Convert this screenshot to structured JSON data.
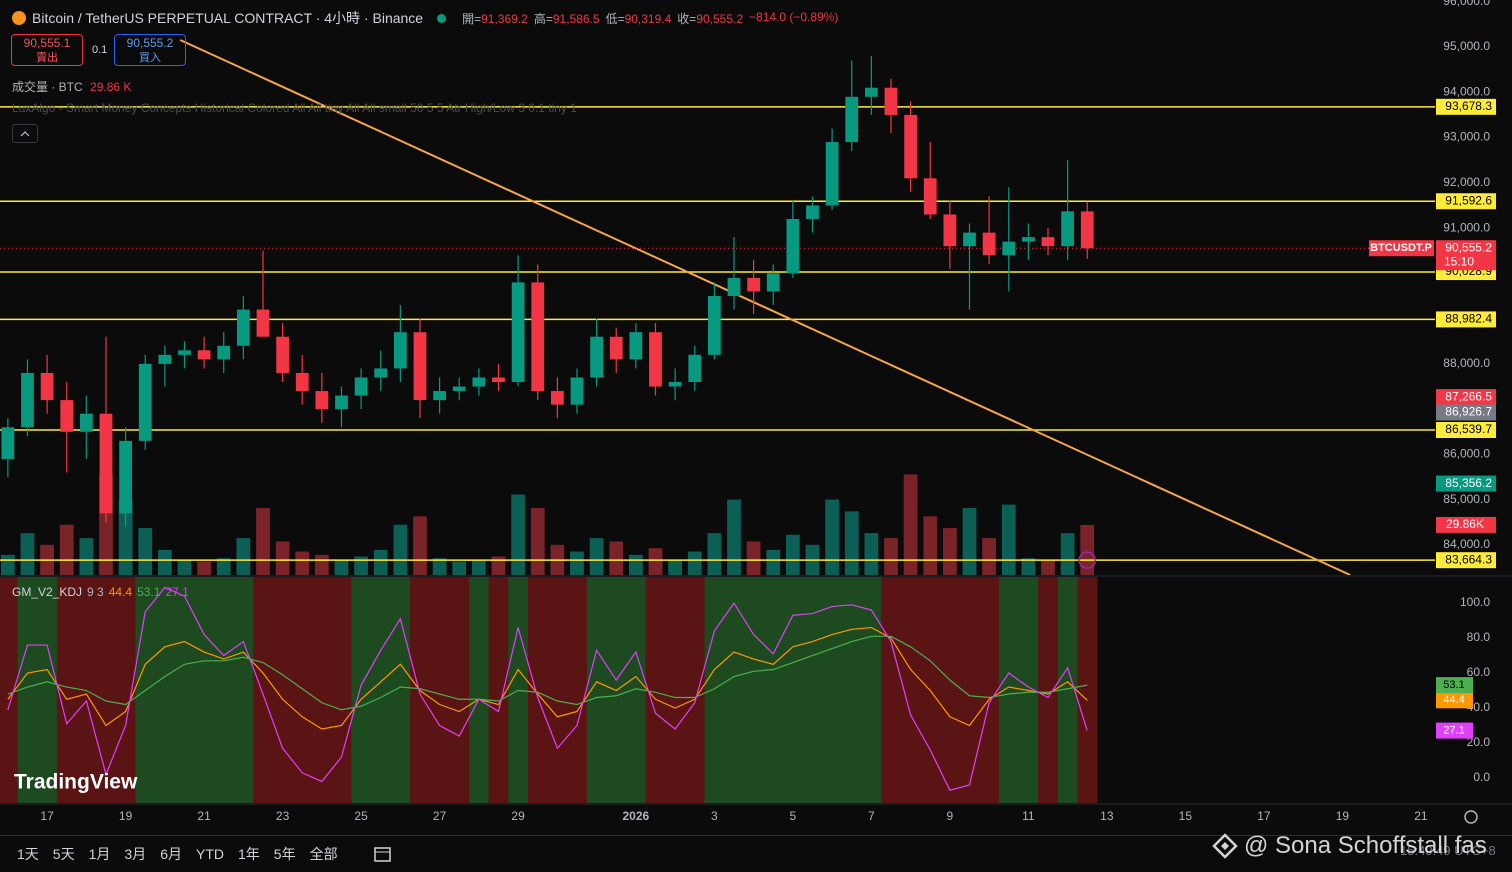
{
  "header": {
    "symbol_title": "Bitcoin / TetherUS PERPETUAL CONTRACT · 4小時 · Binance",
    "ohlc": [
      {
        "label": "開=",
        "value": "91,369.2"
      },
      {
        "label": "高=",
        "value": "91,586.5"
      },
      {
        "label": "低=",
        "value": "90,319.4"
      },
      {
        "label": "收=",
        "value": "90,555.2"
      }
    ],
    "change": "−814.0 (−0.89%)",
    "sell": {
      "price": "90,555.1",
      "label": "賣出"
    },
    "qty": "0.1",
    "buy": {
      "price": "90,555.2",
      "label": "買入"
    },
    "volume_legend": {
      "title": "成交量 · BTC",
      "value": "29.86 K"
    },
    "indicator": "LuxAlgo - Smart Money Concepts Historical Colored All All tiny All All small 50 5 5 Atr High/Low 3 0.1 tiny 1"
  },
  "chart_data": {
    "type": "candlestick",
    "xlim": [
      15.8,
      52.36
    ],
    "ylim": [
      83337,
      96038
    ],
    "xticks": [
      {
        "value": 17,
        "label": "17"
      },
      {
        "value": 19,
        "label": "19"
      },
      {
        "value": 21,
        "label": "21"
      },
      {
        "value": 23,
        "label": "23"
      },
      {
        "value": 25,
        "label": "25"
      },
      {
        "value": 27,
        "label": "27"
      },
      {
        "value": 29,
        "label": "29"
      },
      {
        "value": 32,
        "label": "2026"
      },
      {
        "value": 34,
        "label": "3"
      },
      {
        "value": 36,
        "label": "5"
      },
      {
        "value": 38,
        "label": "7"
      },
      {
        "value": 40,
        "label": "9"
      },
      {
        "value": 42,
        "label": "11"
      },
      {
        "value": 44,
        "label": "13"
      },
      {
        "value": 46,
        "label": "15"
      },
      {
        "value": 48,
        "label": "17"
      },
      {
        "value": 50,
        "label": "19"
      },
      {
        "value": 52,
        "label": "21"
      }
    ],
    "yticks": [
      {
        "value": 84000,
        "label": "84,000.0"
      },
      {
        "value": 85000,
        "label": "85,000.0"
      },
      {
        "value": 86000,
        "label": "86,000.0"
      },
      {
        "value": 87000,
        "label": "87,000.0"
      },
      {
        "value": 88000,
        "label": "88,000.0"
      },
      {
        "value": 89000,
        "label": "89,000.0"
      },
      {
        "value": 90000,
        "label": "90,000.0"
      },
      {
        "value": 91000,
        "label": "91,000.0"
      },
      {
        "value": 92000,
        "label": "92,000.0"
      },
      {
        "value": 93000,
        "label": "93,000.0"
      },
      {
        "value": 94000,
        "label": "94,000.0"
      },
      {
        "value": 95000,
        "label": "95,000.0"
      },
      {
        "value": 96000,
        "label": "96,000.0"
      }
    ],
    "up_color": "#089981",
    "down_color": "#f23645",
    "volume_up_color": "#0b5f55",
    "volume_down_color": "#7a2329",
    "candles": {
      "x": [
        16,
        16.5,
        17,
        17.5,
        18,
        18.5,
        19,
        19.5,
        20,
        20.5,
        21,
        21.5,
        22,
        22.5,
        23,
        23.5,
        24,
        24.5,
        25,
        25.5,
        26,
        26.5,
        27,
        27.5,
        28,
        28.5,
        29,
        29.5,
        30,
        30.5,
        31,
        31.5,
        32,
        32.5,
        33,
        33.5,
        34,
        34.5,
        35,
        35.5,
        36,
        36.5,
        37,
        37.5,
        38,
        38.5,
        39,
        39.5,
        40,
        40.5,
        41,
        41.5,
        42,
        42.5,
        43,
        43.5
      ],
      "open": [
        85900,
        86600,
        87800,
        87200,
        86500,
        86900,
        84700,
        86300,
        88000,
        88200,
        88300,
        88100,
        88400,
        89200,
        88600,
        87800,
        87400,
        87000,
        87300,
        87700,
        87900,
        88700,
        87200,
        87400,
        87500,
        87700,
        87600,
        89800,
        87400,
        87100,
        87700,
        88600,
        88100,
        88700,
        87500,
        87600,
        88200,
        89500,
        89900,
        89600,
        90000,
        91200,
        91500,
        92900,
        93900,
        94100,
        93500,
        92100,
        91300,
        90600,
        90900,
        90400,
        90700,
        90800,
        90600,
        91369.2
      ],
      "high": [
        86800,
        88100,
        88200,
        87600,
        87300,
        88600,
        86600,
        88200,
        88400,
        88500,
        88600,
        88700,
        89500,
        90500,
        88900,
        88200,
        87800,
        87500,
        87900,
        88300,
        89300,
        89000,
        87700,
        87700,
        87900,
        88000,
        90400,
        90200,
        87700,
        87900,
        89000,
        88800,
        88900,
        88900,
        87900,
        88400,
        89800,
        90800,
        90300,
        90200,
        91600,
        91700,
        93200,
        94700,
        94800,
        94300,
        93800,
        92900,
        91600,
        91100,
        91700,
        91900,
        91100,
        91000,
        92500,
        91586.5
      ],
      "low": [
        85500,
        86400,
        86900,
        85600,
        85900,
        84500,
        84400,
        86100,
        87500,
        87900,
        87900,
        87800,
        88100,
        88700,
        87600,
        87100,
        86700,
        86600,
        87000,
        87400,
        87600,
        86800,
        86900,
        87200,
        87300,
        87400,
        87500,
        87200,
        86800,
        86900,
        87500,
        87800,
        87900,
        87300,
        87200,
        87400,
        88100,
        89200,
        89100,
        89300,
        89900,
        90900,
        91400,
        92700,
        93500,
        93100,
        91800,
        91200,
        90100,
        89200,
        90200,
        89600,
        90300,
        90400,
        90300,
        90319.4
      ],
      "close": [
        86600,
        87800,
        87200,
        86500,
        86900,
        84700,
        86300,
        88000,
        88200,
        88300,
        88100,
        88400,
        89200,
        88600,
        87800,
        87400,
        87000,
        87300,
        87700,
        87900,
        88700,
        87200,
        87400,
        87500,
        87700,
        87600,
        89800,
        87400,
        87100,
        87700,
        88600,
        88100,
        88700,
        87500,
        87600,
        88200,
        89500,
        89900,
        89600,
        90000,
        91200,
        91500,
        92900,
        93900,
        94100,
        93500,
        92100,
        91300,
        90600,
        90900,
        90400,
        90700,
        90800,
        90600,
        91369.2,
        90555.2
      ],
      "volume": [
        12000,
        25000,
        18000,
        30000,
        22000,
        60000,
        45000,
        28000,
        15000,
        9000,
        8000,
        10000,
        22000,
        40000,
        20000,
        14000,
        12000,
        9000,
        11000,
        15000,
        30000,
        35000,
        10000,
        8000,
        9000,
        11000,
        48000,
        40000,
        18000,
        14000,
        22000,
        20000,
        12000,
        16000,
        9000,
        14000,
        25000,
        45000,
        20000,
        15000,
        24000,
        18000,
        45000,
        38000,
        25000,
        22000,
        60000,
        35000,
        28000,
        40000,
        22000,
        42000,
        10000,
        9000,
        25000,
        29860
      ]
    },
    "volume_ylim": [
      0,
      343000
    ],
    "volume_label": "29.86K",
    "levels": [
      {
        "value": 93678.3,
        "label": "93,678.3"
      },
      {
        "value": 91592.6,
        "label": "91,592.6"
      },
      {
        "value": 90028.9,
        "label": "90,028.9"
      },
      {
        "value": 88982.4,
        "label": "88,982.4"
      },
      {
        "value": 86539.7,
        "label": "86,539.7"
      },
      {
        "value": 83664.3,
        "label": "83,664.3"
      }
    ],
    "level_color": "#ffeb3b",
    "markers": [
      {
        "value": 87266.5,
        "label": "87,266.5",
        "color": "#f23645"
      },
      {
        "value": 86926.7,
        "label": "86,926.7",
        "color": "#787b86"
      },
      {
        "value": 85356.2,
        "label": "85,356.2",
        "color": "#089981"
      }
    ],
    "current_price": {
      "value": 90555.2,
      "label": "90,555.2",
      "countdown": "15:10",
      "symbol": "BTCUSDT.P",
      "color": "#f23645"
    },
    "trendline": {
      "x": [
        20.39,
        50.2
      ],
      "y": [
        95155,
        83337
      ],
      "color": "#f6a64a"
    },
    "kdj": {
      "title": "GM_V2_KDJ",
      "params": "9 3",
      "ylim": [
        -14.3,
        114.9
      ],
      "yticks": [
        {
          "value": 0,
          "label": "0.0"
        },
        {
          "value": 20,
          "label": "20.0"
        },
        {
          "value": 40,
          "label": "40.0"
        },
        {
          "value": 60,
          "label": "60.0"
        },
        {
          "value": 80,
          "label": "80.0"
        },
        {
          "value": 100,
          "label": "100.0"
        }
      ],
      "band_up": "#1d4a1f",
      "band_down": "#5a1414",
      "series": [
        {
          "color": "#ff9800",
          "values": [
            45,
            60,
            62,
            45,
            48,
            30,
            38,
            65,
            75,
            78,
            72,
            68,
            72,
            60,
            45,
            35,
            28,
            30,
            45,
            55,
            65,
            50,
            42,
            38,
            45,
            42,
            62,
            48,
            35,
            38,
            55,
            50,
            58,
            45,
            40,
            45,
            62,
            72,
            68,
            65,
            75,
            78,
            82,
            85,
            86,
            80,
            62,
            50,
            35,
            30,
            45,
            52,
            50,
            48,
            55,
            44.4
          ]
        },
        {
          "color": "#4caf50",
          "values": [
            48,
            52,
            55,
            52,
            50,
            44,
            42,
            50,
            58,
            65,
            67,
            67,
            69,
            66,
            59,
            51,
            43,
            39,
            41,
            46,
            52,
            51,
            48,
            45,
            45,
            44,
            50,
            49,
            44,
            42,
            46,
            47,
            51,
            49,
            46,
            46,
            51,
            58,
            61,
            62,
            66,
            70,
            74,
            78,
            81,
            81,
            75,
            67,
            56,
            47,
            46,
            48,
            49,
            49,
            51,
            53.1
          ]
        },
        {
          "color": "#e040fb",
          "values": [
            39,
            76,
            76,
            31,
            44,
            2,
            30,
            95,
            109,
            104,
            82,
            70,
            78,
            48,
            17,
            3,
            -2,
            12,
            53,
            73,
            91,
            48,
            30,
            24,
            45,
            38,
            86,
            46,
            17,
            30,
            73,
            56,
            72,
            37,
            28,
            43,
            84,
            100,
            82,
            71,
            93,
            94,
            98,
            99,
            96,
            78,
            36,
            16,
            -7,
            -4,
            43,
            60,
            52,
            46,
            63,
            27.1
          ]
        }
      ]
    }
  },
  "logo": "TradingView",
  "toolbar": {
    "ranges": [
      "1天",
      "5天",
      "1月",
      "3月",
      "6月",
      "YTD",
      "1年",
      "5年",
      "全部"
    ]
  },
  "time": "15:49:49 UTC+8",
  "watermark": "@ Sona Schoffstall fas"
}
